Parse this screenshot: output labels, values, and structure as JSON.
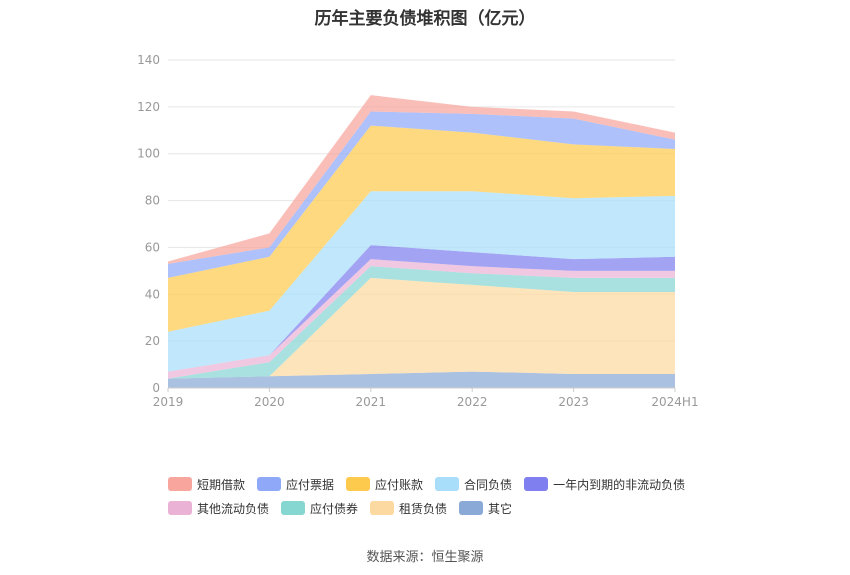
{
  "title": "历年主要负债堆积图（亿元）",
  "source": "数据来源：恒生聚源",
  "chart_data": {
    "type": "area",
    "stacked": true,
    "categories": [
      "2019",
      "2020",
      "2021",
      "2022",
      "2023",
      "2024H1"
    ],
    "ylim": [
      0,
      140
    ],
    "yticks": [
      0,
      20,
      40,
      60,
      80,
      100,
      120,
      140
    ],
    "grid": true,
    "legend_position": "bottom",
    "series": [
      {
        "name": "其它",
        "color": "#8aa9d6",
        "values": [
          4,
          5,
          6,
          7,
          6,
          6
        ]
      },
      {
        "name": "租赁负债",
        "color": "#fcd9a0",
        "values": [
          0,
          0,
          41,
          37,
          35,
          35
        ]
      },
      {
        "name": "应付债券",
        "color": "#86d6d2",
        "values": [
          0,
          6,
          5,
          5,
          6,
          6
        ]
      },
      {
        "name": "其他流动负债",
        "color": "#eab3d6",
        "values": [
          3,
          3,
          3,
          3,
          3,
          3
        ]
      },
      {
        "name": "一年内到期的非流动负债",
        "color": "#7f7ff0",
        "values": [
          0,
          0,
          6,
          6,
          5,
          6
        ]
      },
      {
        "name": "合同负债",
        "color": "#a8defa",
        "values": [
          17,
          19,
          23,
          26,
          26,
          26
        ]
      },
      {
        "name": "应付账款",
        "color": "#fdca4e",
        "values": [
          23,
          23,
          28,
          25,
          23,
          20
        ]
      },
      {
        "name": "应付票据",
        "color": "#8fa9f8",
        "values": [
          6,
          4,
          6,
          8,
          11,
          4
        ]
      },
      {
        "name": "短期借款",
        "color": "#f8a59d",
        "values": [
          1,
          6,
          7,
          3,
          3,
          3
        ]
      }
    ],
    "legend_rows": [
      [
        "短期借款",
        "应付票据",
        "应付账款",
        "合同负债",
        "一年内到期的非流动负债"
      ],
      [
        "其他流动负债",
        "应付债券",
        "租赁负债",
        "其它"
      ]
    ]
  }
}
